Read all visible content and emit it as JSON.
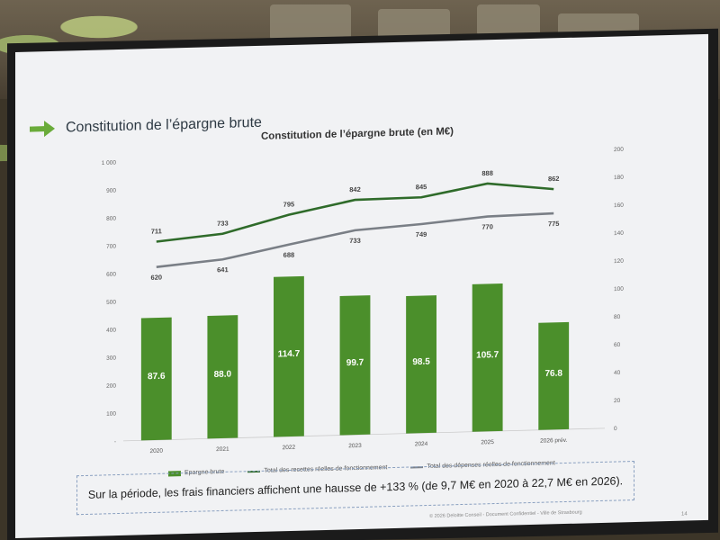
{
  "slide": {
    "title": "Constitution de l’épargne brute",
    "note": "Sur la période, les frais financiers affichent une hausse de +133 % (de 9,7 M€ en 2020 à 22,7 M€ en 2026).",
    "footer": "© 2026 Deloitte Conseil - Document Confidentiel - Ville de Strasbourg",
    "page_number": "14"
  },
  "colors": {
    "bar": "#4b8f2b",
    "recettes_line": "#2f6b2a",
    "depenses_line": "#7a7f86",
    "accent_arrow": "#6aab3a"
  },
  "chart_data": {
    "type": "bar",
    "title": "Constitution de l’épargne brute (en M€)",
    "categories": [
      "2020",
      "2021",
      "2022",
      "2023",
      "2024",
      "2025",
      "2026 prév."
    ],
    "left_axis": {
      "ticks": [
        "-",
        "100",
        "200",
        "300",
        "400",
        "500",
        "600",
        "700",
        "800",
        "900",
        "1 000"
      ],
      "ylim": [
        0,
        1000
      ]
    },
    "right_axis": {
      "ticks": [
        "0",
        "20",
        "40",
        "60",
        "80",
        "100",
        "120",
        "140",
        "160",
        "180",
        "200"
      ],
      "ylim": [
        0,
        200
      ]
    },
    "series": [
      {
        "name": "Epargne brute",
        "type": "bar",
        "axis": "right",
        "values": [
          87.6,
          88.0,
          114.7,
          99.7,
          98.5,
          105.7,
          76.8
        ],
        "labels": [
          "87.6",
          "88.0",
          "114.7",
          "99.7",
          "98.5",
          "105.7",
          "76.8"
        ]
      },
      {
        "name": "Total des recettes réelles de fonctionnement",
        "type": "line",
        "axis": "left",
        "values": [
          711,
          733,
          795,
          842,
          845,
          888,
          862
        ],
        "labels": [
          "711",
          "733",
          "795",
          "842",
          "845",
          "888",
          "862"
        ]
      },
      {
        "name": "Total des dépenses réelles de fonctionnement",
        "type": "line",
        "axis": "left",
        "values": [
          620,
          641,
          688,
          733,
          749,
          770,
          775
        ],
        "labels": [
          "620",
          "641",
          "688",
          "733",
          "749",
          "770",
          "775"
        ]
      }
    ],
    "legend_position": "bottom",
    "grid": false
  }
}
